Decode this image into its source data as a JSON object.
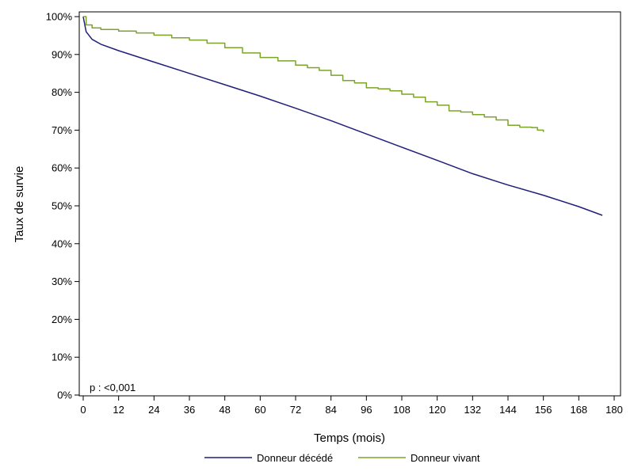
{
  "chart_data": {
    "type": "line",
    "title": "",
    "xlabel": "Temps (mois)",
    "ylabel": "Taux de survie",
    "xlim": [
      0,
      180
    ],
    "ylim": [
      0,
      100
    ],
    "x_ticks": [
      0,
      12,
      24,
      36,
      48,
      60,
      72,
      84,
      96,
      108,
      120,
      132,
      144,
      156,
      168,
      180
    ],
    "y_ticks": [
      0,
      10,
      20,
      30,
      40,
      50,
      60,
      70,
      80,
      90,
      100
    ],
    "y_tick_labels": [
      "0%",
      "10%",
      "20%",
      "30%",
      "40%",
      "50%",
      "60%",
      "70%",
      "80%",
      "90%",
      "100%"
    ],
    "grid": false,
    "legend_position": "bottom",
    "annotation": "p : <0,001",
    "series": [
      {
        "name": "Donneur décédé",
        "color": "#1f1f7a",
        "step": false,
        "x": [
          0,
          1,
          3,
          6,
          12,
          24,
          36,
          48,
          60,
          72,
          84,
          96,
          108,
          120,
          132,
          144,
          156,
          168,
          176
        ],
        "y": [
          100,
          96,
          94,
          92.7,
          91,
          88,
          85,
          82,
          79,
          75.8,
          72.5,
          69,
          65.5,
          62,
          58.5,
          55.5,
          52.8,
          49.8,
          47.5
        ]
      },
      {
        "name": "Donneur vivant",
        "color": "#7ba428",
        "step": true,
        "x": [
          0,
          1,
          3,
          6,
          12,
          18,
          24,
          30,
          36,
          42,
          48,
          54,
          60,
          66,
          72,
          76,
          80,
          84,
          88,
          92,
          96,
          100,
          104,
          108,
          112,
          116,
          120,
          124,
          128,
          132,
          136,
          140,
          144,
          148,
          152,
          154,
          156
        ],
        "y": [
          100,
          97.8,
          97,
          96.6,
          96.2,
          95.7,
          95.1,
          94.4,
          93.8,
          93,
          91.8,
          90.4,
          89.2,
          88.3,
          87.2,
          86.5,
          85.8,
          84.5,
          83.1,
          82.5,
          81.2,
          80.9,
          80.4,
          79.5,
          78.7,
          77.5,
          76.6,
          75.1,
          74.8,
          74.1,
          73.5,
          72.7,
          71.3,
          70.8,
          70.7,
          70.0,
          69.5
        ]
      }
    ]
  }
}
